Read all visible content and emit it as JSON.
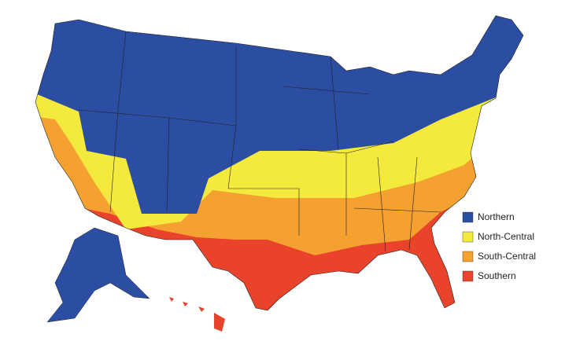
{
  "legend": {
    "items": [
      {
        "label": "Northern",
        "color": "#2b4ea2"
      },
      {
        "label": "North-Central",
        "color": "#f4ea3d"
      },
      {
        "label": "South-Central",
        "color": "#f5a132"
      },
      {
        "label": "Southern",
        "color": "#e9432b"
      }
    ]
  }
}
